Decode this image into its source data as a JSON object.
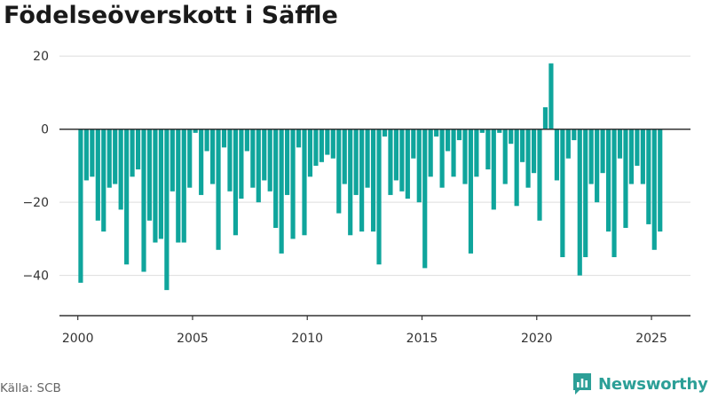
{
  "title": "Födelseöverskott i Säffle",
  "source": "Källa: SCB",
  "brand": {
    "name": "Newsworthy",
    "icon": "newsworthy-logo-icon",
    "color": "#2c9f97"
  },
  "chart_data": {
    "type": "bar",
    "title": "Födelseöverskott i Säffle",
    "xlabel": "",
    "ylabel": "",
    "bar_color": "#0fa59c",
    "grid": true,
    "grid_color": "#dddddd",
    "zero_line_color": "#333333",
    "ylim": [
      -51,
      22
    ],
    "xlim": [
      1999.2,
      2026.7
    ],
    "y_ticks": [
      20,
      0,
      -20,
      -40
    ],
    "y_tick_labels": [
      "20",
      "0",
      "−20",
      "−40"
    ],
    "x_ticks": [
      2000,
      2005,
      2010,
      2015,
      2020,
      2025
    ],
    "x_tick_labels": [
      "2000",
      "2005",
      "2010",
      "2015",
      "2020",
      "2025"
    ],
    "frequency": "quarterly",
    "start": [
      2000,
      1
    ],
    "values": [
      -42,
      -14,
      -13,
      -25,
      -28,
      -16,
      -15,
      -22,
      -37,
      -13,
      -11,
      -39,
      -25,
      -31,
      -30,
      -44,
      -17,
      -31,
      -31,
      -16,
      -1,
      -18,
      -6,
      -15,
      -33,
      -5,
      -17,
      -29,
      -19,
      -6,
      -16,
      -20,
      -14,
      -17,
      -27,
      -34,
      -18,
      -30,
      -5,
      -29,
      -13,
      -10,
      -9,
      -7,
      -8,
      -23,
      -15,
      -29,
      -18,
      -28,
      -16,
      -28,
      -37,
      -2,
      -18,
      -14,
      -17,
      -19,
      -8,
      -20,
      -38,
      -13,
      -2,
      -16,
      -6,
      -13,
      -3,
      -15,
      -34,
      -13,
      -1,
      -11,
      -22,
      -1,
      -15,
      -4,
      -21,
      -9,
      -16,
      -12,
      -25,
      6,
      18,
      -14,
      -35,
      -8,
      -3,
      -40,
      -35,
      -15,
      -20,
      -12,
      -28,
      -35,
      -8,
      -27,
      -15,
      -10,
      -15,
      -26,
      -33,
      -28
    ]
  }
}
